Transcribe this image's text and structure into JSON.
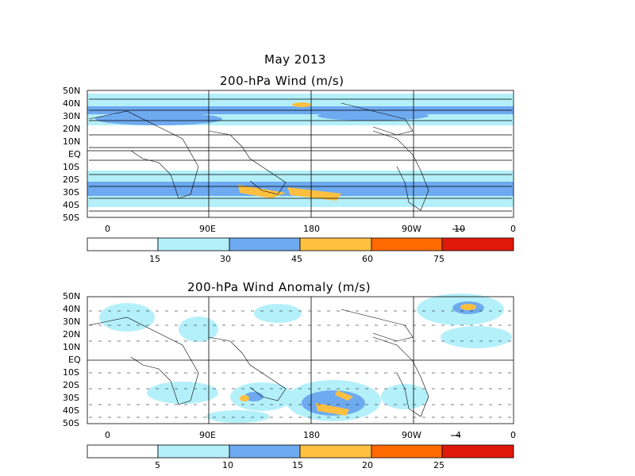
{
  "figure": {
    "title": "May 2013",
    "panels": [
      {
        "id": "wind",
        "title": "200-hPa Wind (m/s)",
        "lat_labels": [
          "50N",
          "40N",
          "30N",
          "20N",
          "10N",
          "EQ",
          "10S",
          "20S",
          "30S",
          "40S",
          "50S"
        ],
        "lon_labels": [
          "0",
          "90E",
          "180",
          "90W",
          "0"
        ],
        "ref_vector_label": "10",
        "colorbar": {
          "labels": [
            "15",
            "30",
            "45",
            "60",
            "75"
          ],
          "colors": [
            "#ffffff",
            "#b4f0fa",
            "#6eaaf0",
            "#ffc040",
            "#ff6a00",
            "#e01a0a"
          ]
        }
      },
      {
        "id": "anomaly",
        "title": "200-hPa Wind Anomaly (m/s)",
        "lat_labels": [
          "50N",
          "40N",
          "30N",
          "20N",
          "10N",
          "EQ",
          "10S",
          "20S",
          "30S",
          "40S",
          "50S"
        ],
        "lon_labels": [
          "0",
          "90E",
          "180",
          "90W",
          "0"
        ],
        "ref_vector_label": "4",
        "colorbar": {
          "labels": [
            "5",
            "10",
            "15",
            "20",
            "25"
          ],
          "colors": [
            "#ffffff",
            "#b4f0fa",
            "#6eaaf0",
            "#ffc040",
            "#ff6a00",
            "#e01a0a"
          ]
        }
      }
    ]
  }
}
